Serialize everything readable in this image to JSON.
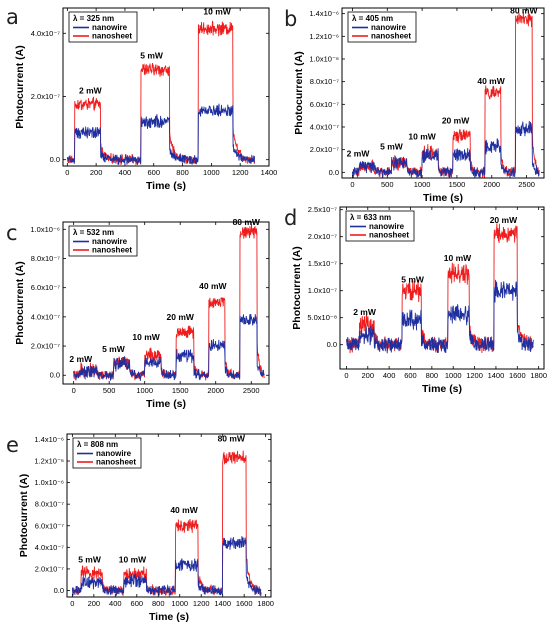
{
  "colors": {
    "nanowire": "#1f2fa0",
    "nanosheet": "#ee1c1c",
    "axis": "#000000"
  },
  "chart_data": [
    {
      "panel": "a",
      "type": "line",
      "legend_title": "λ = 325 nm",
      "legend_position": "top-left",
      "xlabel": "Time (s)",
      "ylabel": "Photocurrent (A)",
      "xlim": [
        -30,
        1400
      ],
      "ylim": [
        -2e-08,
        4.8e-07
      ],
      "xticks": [
        0,
        200,
        400,
        600,
        800,
        1000,
        1200,
        1400
      ],
      "xtick_labels": [
        "0",
        "200",
        "400",
        "600",
        "800",
        "1000",
        "1200",
        "1400"
      ],
      "yticks": [
        0,
        2e-07,
        4e-07
      ],
      "ytick_labels": [
        "0.0",
        "2.0x10⁻⁷",
        "4.0x10⁻⁷"
      ],
      "annotations": [
        {
          "text": "2 mW",
          "x": 160,
          "y": 2.1e-07
        },
        {
          "text": "5 mW",
          "x": 585,
          "y": 3.2e-07
        },
        {
          "text": "10 mW",
          "x": 1040,
          "y": 4.6e-07
        }
      ],
      "pulses": [
        {
          "on": 50,
          "off": 230,
          "nanowire": 8.5e-08,
          "nanosheet": 1.75e-07
        },
        {
          "on": 510,
          "off": 710,
          "nanowire": 1.2e-07,
          "nanosheet": 2.85e-07
        },
        {
          "on": 910,
          "off": 1150,
          "nanowire": 1.55e-07,
          "nanosheet": 4.15e-07
        }
      ],
      "series": [
        {
          "name": "nanowire",
          "points": [
            [
              0,
              5e-09
            ],
            [
              50,
              5e-09
            ],
            [
              60,
              8e-08
            ],
            [
              230,
              8.5e-08
            ],
            [
              290,
              3e-08
            ],
            [
              400,
              1e-08
            ],
            [
              460,
              5e-09
            ],
            [
              510,
              1e-08
            ],
            [
              520,
              1.2e-07
            ],
            [
              710,
              1.15e-07
            ],
            [
              770,
              4e-08
            ],
            [
              880,
              2e-08
            ],
            [
              910,
              2e-08
            ],
            [
              920,
              1.55e-07
            ],
            [
              1150,
              1.45e-07
            ],
            [
              1200,
              5e-08
            ],
            [
              1300,
              2e-08
            ]
          ]
        },
        {
          "name": "nanosheet",
          "points": [
            [
              0,
              5e-09
            ],
            [
              50,
              5e-09
            ],
            [
              60,
              1.75e-07
            ],
            [
              230,
              1.65e-07
            ],
            [
              290,
              5e-08
            ],
            [
              400,
              2e-08
            ],
            [
              460,
              1.5e-08
            ],
            [
              510,
              2e-08
            ],
            [
              520,
              2.85e-07
            ],
            [
              710,
              2.8e-07
            ],
            [
              770,
              1.2e-07
            ],
            [
              880,
              7e-08
            ],
            [
              910,
              7e-08
            ],
            [
              920,
              4.15e-07
            ],
            [
              1150,
              4.1e-07
            ],
            [
              1200,
              1.3e-07
            ],
            [
              1300,
              7.5e-08
            ]
          ]
        }
      ]
    },
    {
      "panel": "b",
      "type": "line",
      "legend_title": "λ = 405 nm",
      "legend_position": "top-left",
      "xlabel": "Time (s)",
      "ylabel": "Photocurrent (A)",
      "xlim": [
        -150,
        2750
      ],
      "ylim": [
        -5e-08,
        1.45e-06
      ],
      "xticks": [
        0,
        500,
        1000,
        1500,
        2000,
        2500
      ],
      "xtick_labels": [
        "0",
        "500",
        "1000",
        "1500",
        "2000",
        "2500"
      ],
      "yticks": [
        0,
        2e-07,
        4e-07,
        6e-07,
        8e-07,
        1e-06,
        1.2e-06,
        1.4e-06
      ],
      "ytick_labels": [
        "0.0",
        "2.0x10⁻⁷",
        "4.0x10⁻⁷",
        "6.0x10⁻⁷",
        "8.0x10⁻⁷",
        "1.0x10⁻⁶",
        "1.2x10⁻⁶",
        "1.4x10⁻⁶"
      ],
      "annotations": [
        {
          "text": "2 mW",
          "x": 80,
          "y": 1.4e-07
        },
        {
          "text": "5 mW",
          "x": 560,
          "y": 2e-07
        },
        {
          "text": "10 mW",
          "x": 1000,
          "y": 2.9e-07
        },
        {
          "text": "20 mW",
          "x": 1480,
          "y": 4.3e-07
        },
        {
          "text": "40 mW",
          "x": 1990,
          "y": 7.8e-07
        },
        {
          "text": "80 mW",
          "x": 2460,
          "y": 1.4e-06
        }
      ],
      "pulses": [
        {
          "on": 100,
          "off": 320,
          "nanowire": 5e-08,
          "nanosheet": 4.5e-08
        },
        {
          "on": 560,
          "off": 790,
          "nanowire": 8e-08,
          "nanosheet": 8e-08
        },
        {
          "on": 1000,
          "off": 1230,
          "nanowire": 1.45e-07,
          "nanosheet": 1.75e-07
        },
        {
          "on": 1440,
          "off": 1690,
          "nanowire": 1.5e-07,
          "nanosheet": 3.35e-07
        },
        {
          "on": 1900,
          "off": 2130,
          "nanowire": 2.25e-07,
          "nanosheet": 7e-07
        },
        {
          "on": 2340,
          "off": 2580,
          "nanowire": 3.8e-07,
          "nanosheet": 1.35e-06
        }
      ],
      "series": [
        {
          "name": "nanowire",
          "points": [
            [
              0,
              0
            ],
            [
              100,
              0
            ],
            [
              320,
              5e-08
            ],
            [
              790,
              8e-08
            ],
            [
              1230,
              1.45e-07
            ],
            [
              1690,
              1.5e-07
            ],
            [
              2130,
              2.25e-07
            ],
            [
              2580,
              3.8e-07
            ],
            [
              2650,
              0
            ]
          ]
        },
        {
          "name": "nanosheet",
          "points": [
            [
              0,
              0
            ],
            [
              100,
              0
            ],
            [
              320,
              4.5e-08
            ],
            [
              790,
              8e-08
            ],
            [
              1230,
              1.75e-07
            ],
            [
              1690,
              3.35e-07
            ],
            [
              2130,
              7e-07
            ],
            [
              2580,
              1.35e-06
            ],
            [
              2650,
              0
            ]
          ]
        }
      ]
    },
    {
      "panel": "c",
      "type": "line",
      "legend_title": "λ = 532 nm",
      "legend_position": "top-left",
      "xlabel": "Time (s)",
      "ylabel": "Photocurrent (A)",
      "xlim": [
        -150,
        2750
      ],
      "ylim": [
        -6e-08,
        1.05e-06
      ],
      "xticks": [
        0,
        500,
        1000,
        1500,
        2000,
        2500
      ],
      "xtick_labels": [
        "0",
        "500",
        "1000",
        "1500",
        "2000",
        "2500"
      ],
      "yticks": [
        0,
        2e-07,
        4e-07,
        6e-07,
        8e-07,
        1e-06
      ],
      "ytick_labels": [
        "0.0",
        "2.0x10⁻⁷",
        "4.0x10⁻⁷",
        "6.0x10⁻⁷",
        "8.0x10⁻⁷",
        "1.0x10⁻⁶"
      ],
      "annotations": [
        {
          "text": "2 mW",
          "x": 100,
          "y": 9e-08
        },
        {
          "text": "5 mW",
          "x": 560,
          "y": 1.6e-07
        },
        {
          "text": "10 mW",
          "x": 1020,
          "y": 2.4e-07
        },
        {
          "text": "20 mW",
          "x": 1500,
          "y": 3.8e-07
        },
        {
          "text": "40 mW",
          "x": 1960,
          "y": 5.9e-07
        },
        {
          "text": "80 mW",
          "x": 2430,
          "y": 1.03e-06
        }
      ],
      "pulses": [
        {
          "on": 100,
          "off": 330,
          "nanowire": 3e-08,
          "nanosheet": 3.5e-08
        },
        {
          "on": 560,
          "off": 790,
          "nanowire": 7.5e-08,
          "nanosheet": 9e-08
        },
        {
          "on": 1000,
          "off": 1230,
          "nanowire": 9e-08,
          "nanosheet": 1.4e-07
        },
        {
          "on": 1440,
          "off": 1690,
          "nanowire": 1.3e-07,
          "nanosheet": 2.95e-07
        },
        {
          "on": 1900,
          "off": 2130,
          "nanowire": 2e-07,
          "nanosheet": 5e-07
        },
        {
          "on": 2340,
          "off": 2580,
          "nanowire": 3.8e-07,
          "nanosheet": 9.8e-07
        }
      ],
      "series": [
        {
          "name": "nanowire",
          "points": [
            [
              0,
              0
            ],
            [
              100,
              0
            ],
            [
              330,
              3e-08
            ],
            [
              790,
              7.5e-08
            ],
            [
              1230,
              9e-08
            ],
            [
              1690,
              1.3e-07
            ],
            [
              2130,
              2e-07
            ],
            [
              2580,
              3.8e-07
            ],
            [
              2650,
              0
            ]
          ]
        },
        {
          "name": "nanosheet",
          "points": [
            [
              0,
              0
            ],
            [
              100,
              0
            ],
            [
              330,
              3.5e-08
            ],
            [
              790,
              9e-08
            ],
            [
              1230,
              1.4e-07
            ],
            [
              1690,
              2.95e-07
            ],
            [
              2130,
              5e-07
            ],
            [
              2580,
              9.8e-07
            ],
            [
              2650,
              0
            ]
          ]
        }
      ]
    },
    {
      "panel": "d",
      "type": "line",
      "legend_title": "λ = 633 nm",
      "legend_position": "top-left",
      "xlabel": "Time (s)",
      "ylabel": "Photocurrent (A)",
      "xlim": [
        -60,
        1850
      ],
      "ylim": [
        -4.5e-08,
        2.55e-07
      ],
      "xticks": [
        0,
        200,
        400,
        600,
        800,
        1000,
        1200,
        1400,
        1600,
        1800
      ],
      "xtick_labels": [
        "0",
        "200",
        "400",
        "600",
        "800",
        "1000",
        "1200",
        "1400",
        "1600",
        "1800"
      ],
      "yticks": [
        0,
        5e-08,
        1e-07,
        1.5e-07,
        2e-07,
        2.5e-07
      ],
      "ytick_labels": [
        "0.0",
        "5.0x10⁻⁸",
        "1.0x10⁻⁷",
        "1.5x10⁻⁷",
        "2.0x10⁻⁷",
        "2.5x10⁻⁷"
      ],
      "annotations": [
        {
          "text": "2 mW",
          "x": 170,
          "y": 5.5e-08
        },
        {
          "text": "5 mW",
          "x": 620,
          "y": 1.15e-07
        },
        {
          "text": "10 mW",
          "x": 1040,
          "y": 1.55e-07
        },
        {
          "text": "20 mW",
          "x": 1470,
          "y": 2.25e-07
        }
      ],
      "pulses": [
        {
          "on": 120,
          "off": 260,
          "nanowire": 1.5e-08,
          "nanosheet": 3.5e-08
        },
        {
          "on": 520,
          "off": 700,
          "nanowire": 4.5e-08,
          "nanosheet": 1e-07
        },
        {
          "on": 950,
          "off": 1150,
          "nanowire": 5.5e-08,
          "nanosheet": 1.3e-07
        },
        {
          "on": 1380,
          "off": 1600,
          "nanowire": 1e-07,
          "nanosheet": 2.05e-07
        }
      ],
      "series": [
        {
          "name": "nanowire",
          "points": [
            [
              0,
              1e-08
            ],
            [
              120,
              1e-08
            ],
            [
              260,
              1.5e-08
            ],
            [
              700,
              4.5e-08
            ],
            [
              1150,
              5.5e-08
            ],
            [
              1600,
              1e-07
            ],
            [
              1750,
              -2e-08
            ]
          ]
        },
        {
          "name": "nanosheet",
          "points": [
            [
              0,
              1e-08
            ],
            [
              120,
              1e-08
            ],
            [
              260,
              3.5e-08
            ],
            [
              700,
              1e-07
            ],
            [
              1150,
              1.3e-07
            ],
            [
              1600,
              2.05e-07
            ],
            [
              1750,
              -2.5e-08
            ]
          ]
        }
      ]
    },
    {
      "panel": "e",
      "type": "line",
      "legend_title": "λ = 808 nm",
      "legend_position": "top-left",
      "xlabel": "Time (s)",
      "ylabel": "Photocurrent (A)",
      "xlim": [
        -50,
        1850
      ],
      "ylim": [
        -6e-08,
        1.45e-06
      ],
      "xticks": [
        0,
        200,
        400,
        600,
        800,
        1000,
        1200,
        1400,
        1600,
        1800
      ],
      "xtick_labels": [
        "0",
        "200",
        "400",
        "600",
        "800",
        "1000",
        "1200",
        "1400",
        "1600",
        "1800"
      ],
      "yticks": [
        0,
        2e-07,
        4e-07,
        6e-07,
        8e-07,
        1e-06,
        1.2e-06,
        1.4e-06
      ],
      "ytick_labels": [
        "0.0",
        "2.0x10⁻⁷",
        "4.0x10⁻⁷",
        "6.0x10⁻⁷",
        "8.0x10⁻⁷",
        "1.0x10⁻⁶",
        "1.2x10⁻⁶",
        "1.4x10⁻⁶"
      ],
      "annotations": [
        {
          "text": "5 mW",
          "x": 160,
          "y": 2.6e-07
        },
        {
          "text": "10 mW",
          "x": 560,
          "y": 2.6e-07
        },
        {
          "text": "40 mW",
          "x": 1040,
          "y": 7.2e-07
        },
        {
          "text": "80 mW",
          "x": 1480,
          "y": 1.38e-06
        }
      ],
      "pulses": [
        {
          "on": 80,
          "off": 280,
          "nanowire": 7e-08,
          "nanosheet": 1.6e-07
        },
        {
          "on": 480,
          "off": 690,
          "nanowire": 8.5e-08,
          "nanosheet": 1.6e-07
        },
        {
          "on": 960,
          "off": 1170,
          "nanowire": 2.3e-07,
          "nanosheet": 6e-07
        },
        {
          "on": 1400,
          "off": 1620,
          "nanowire": 4.4e-07,
          "nanosheet": 1.23e-06
        }
      ],
      "series": [
        {
          "name": "nanowire",
          "points": [
            [
              0,
              0
            ],
            [
              80,
              0
            ],
            [
              280,
              7e-08
            ],
            [
              690,
              8.5e-08
            ],
            [
              1170,
              2.3e-07
            ],
            [
              1620,
              4.4e-07
            ],
            [
              1780,
              0
            ]
          ]
        },
        {
          "name": "nanosheet",
          "points": [
            [
              0,
              0
            ],
            [
              80,
              0
            ],
            [
              280,
              1.6e-07
            ],
            [
              690,
              1.6e-07
            ],
            [
              1170,
              6e-07
            ],
            [
              1620,
              1.23e-06
            ],
            [
              1780,
              0
            ]
          ]
        }
      ]
    }
  ]
}
